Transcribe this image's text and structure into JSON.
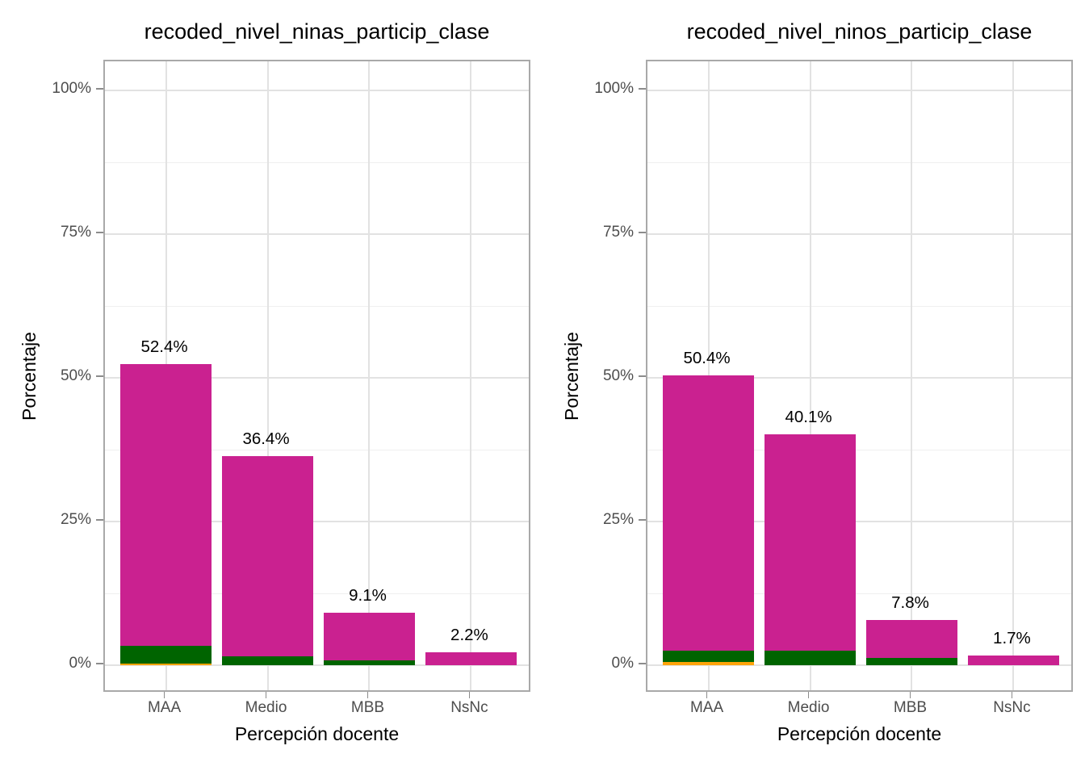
{
  "figure": {
    "background": "#FFFFFF",
    "colors": {
      "bar_magenta": "#CA2190",
      "bar_darkgreen": "#006400",
      "bar_orange": "#FFA40A",
      "axis_text": "#4D4D4D",
      "title_text": "#000000",
      "grid_major": "#E2E2E2",
      "grid_minor": "#EFEFEF",
      "panel_border": "#A9A9A9",
      "tick_mark": "#8C8C8C"
    }
  },
  "chart_data": [
    {
      "type": "bar",
      "subtype": "stacked",
      "title": "recoded_nivel_ninas_particip_clase",
      "xlabel": "Percepción docente",
      "ylabel": "Porcentaje",
      "categories": [
        "MAA",
        "Medio",
        "MBB",
        "NsNc"
      ],
      "yticks": [
        "0%",
        "25%",
        "50%",
        "75%",
        "100%"
      ],
      "ytick_values": [
        0,
        25,
        50,
        75,
        100
      ],
      "ylim": [
        0,
        100
      ],
      "grid": "major+minor",
      "legend": false,
      "totals": [
        52.4,
        36.4,
        9.1,
        2.2
      ],
      "bar_labels": [
        "52.4%",
        "36.4%",
        "9.1%",
        "2.2%"
      ],
      "series": [
        {
          "name": "segment-orange",
          "color_key": "bar_orange",
          "values": [
            0.3,
            0,
            0,
            0
          ]
        },
        {
          "name": "segment-darkgreen",
          "color_key": "bar_darkgreen",
          "values": [
            3.1,
            1.5,
            0.8,
            0
          ]
        },
        {
          "name": "segment-magenta",
          "color_key": "bar_magenta",
          "values": [
            49.0,
            34.9,
            8.3,
            2.2
          ]
        }
      ]
    },
    {
      "type": "bar",
      "subtype": "stacked",
      "title": "recoded_nivel_ninos_particip_clase",
      "xlabel": "Percepción docente",
      "ylabel": "Porcentaje",
      "categories": [
        "MAA",
        "Medio",
        "MBB",
        "NsNc"
      ],
      "yticks": [
        "0%",
        "25%",
        "50%",
        "75%",
        "100%"
      ],
      "ytick_values": [
        0,
        25,
        50,
        75,
        100
      ],
      "ylim": [
        0,
        100
      ],
      "grid": "major+minor",
      "legend": false,
      "totals": [
        50.4,
        40.1,
        7.8,
        1.7
      ],
      "bar_labels": [
        "50.4%",
        "40.1%",
        "7.8%",
        "1.7%"
      ],
      "series": [
        {
          "name": "segment-orange",
          "color_key": "bar_orange",
          "values": [
            0.5,
            0,
            0,
            0
          ]
        },
        {
          "name": "segment-darkgreen",
          "color_key": "bar_darkgreen",
          "values": [
            2.0,
            2.5,
            1.3,
            0
          ]
        },
        {
          "name": "segment-magenta",
          "color_key": "bar_magenta",
          "values": [
            47.9,
            37.6,
            6.5,
            1.7
          ]
        }
      ]
    }
  ]
}
